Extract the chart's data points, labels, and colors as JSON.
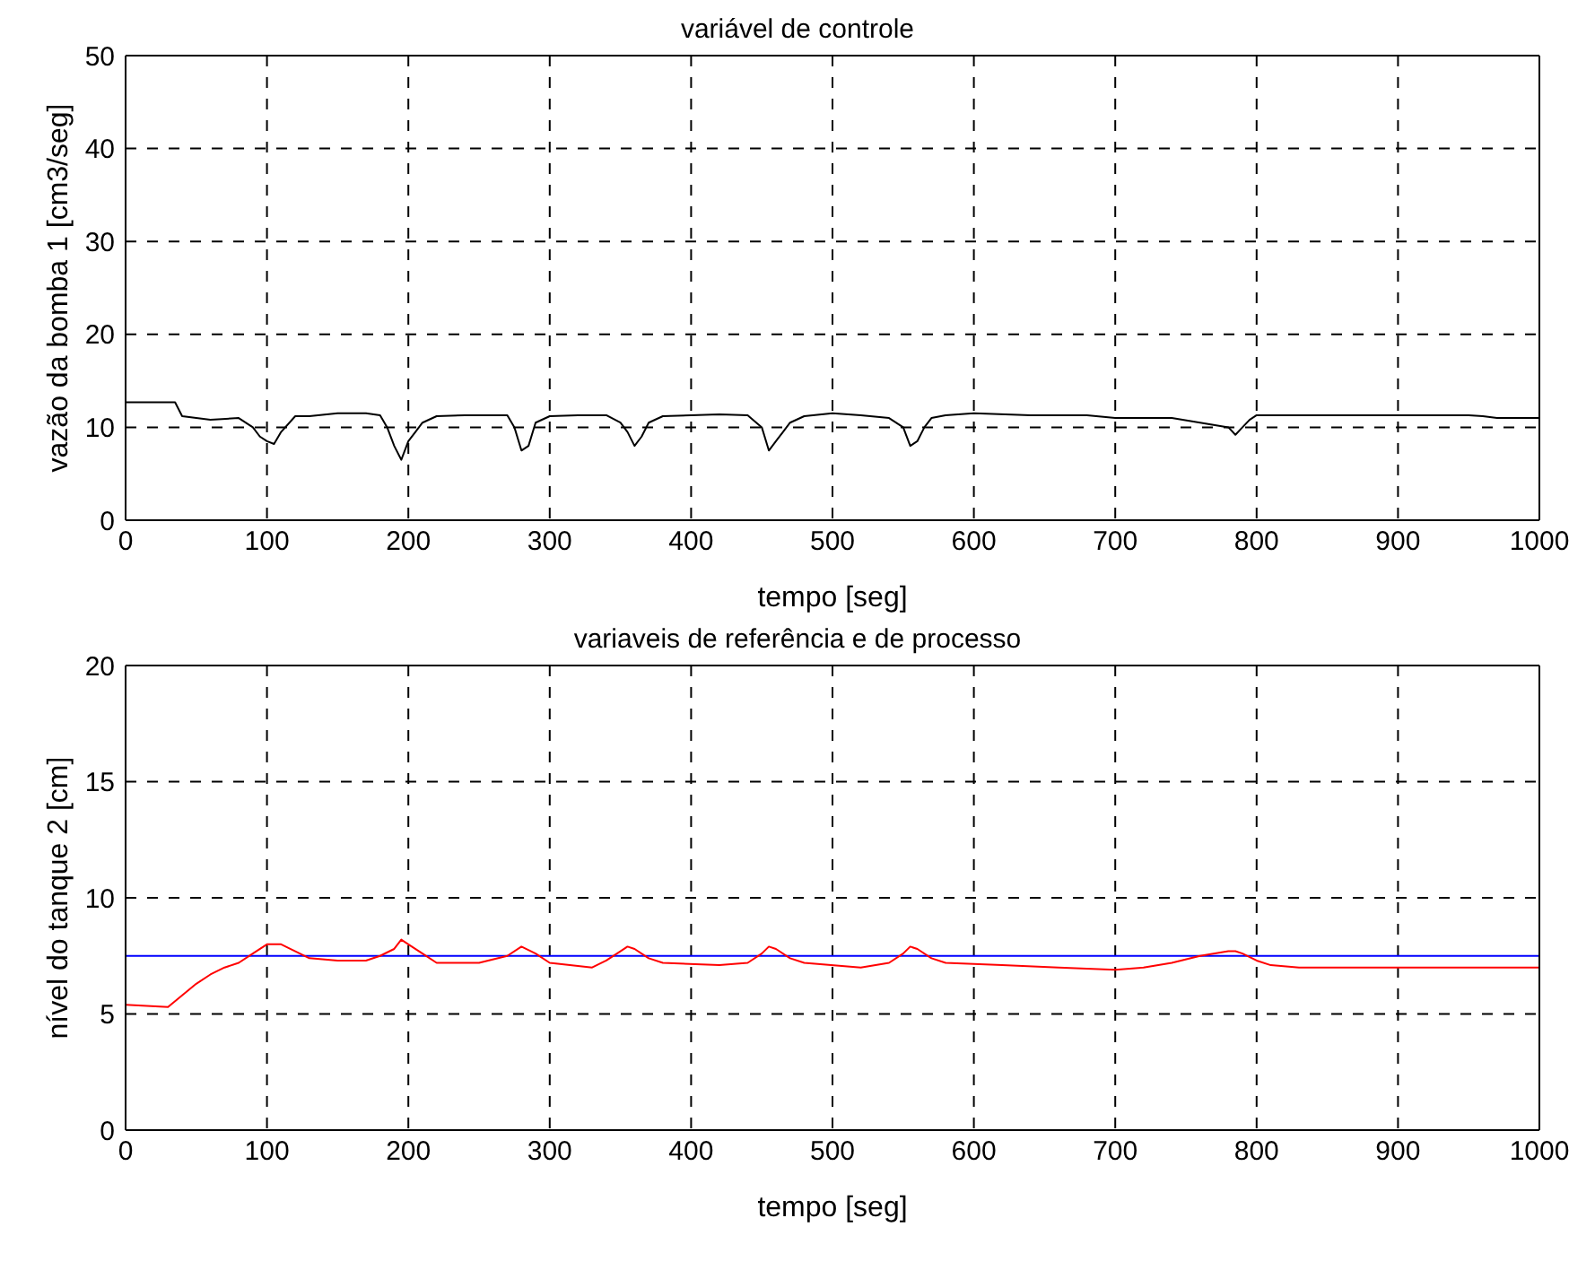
{
  "chart_data": [
    {
      "type": "line",
      "title": "variável de controle",
      "xlabel": "tempo [seg]",
      "ylabel": "vazão da bomba 1 [cm3/seg]",
      "xlim": [
        0,
        1000
      ],
      "ylim": [
        0,
        50
      ],
      "xticks": [
        0,
        100,
        200,
        300,
        400,
        500,
        600,
        700,
        800,
        900,
        1000
      ],
      "yticks": [
        0,
        10,
        20,
        30,
        40,
        50
      ],
      "grid": true,
      "line_style": "solid",
      "marker": "none",
      "x": [
        0,
        35,
        40,
        50,
        60,
        80,
        90,
        95,
        100,
        105,
        110,
        120,
        130,
        150,
        170,
        180,
        185,
        190,
        195,
        200,
        205,
        210,
        220,
        240,
        260,
        270,
        275,
        280,
        285,
        290,
        300,
        320,
        340,
        350,
        355,
        360,
        365,
        370,
        380,
        400,
        420,
        440,
        450,
        455,
        460,
        465,
        470,
        480,
        500,
        520,
        540,
        550,
        555,
        560,
        565,
        570,
        580,
        600,
        640,
        680,
        700,
        740,
        760,
        780,
        785,
        790,
        795,
        800,
        810,
        850,
        900,
        950,
        960,
        970,
        980,
        1000
      ],
      "series": [
        {
          "color": "#000000",
          "values": [
            12.7,
            12.7,
            11.2,
            11.0,
            10.8,
            11.0,
            10.0,
            9.0,
            8.5,
            8.2,
            9.5,
            11.2,
            11.2,
            11.5,
            11.5,
            11.3,
            10.0,
            8.0,
            6.5,
            8.5,
            9.5,
            10.5,
            11.2,
            11.3,
            11.3,
            11.3,
            10.0,
            7.5,
            8.0,
            10.5,
            11.2,
            11.3,
            11.3,
            10.5,
            9.5,
            8.0,
            9.0,
            10.5,
            11.2,
            11.3,
            11.4,
            11.3,
            10.0,
            7.5,
            8.5,
            9.5,
            10.5,
            11.2,
            11.5,
            11.3,
            11.0,
            10.0,
            8.0,
            8.5,
            10.0,
            11.0,
            11.3,
            11.5,
            11.3,
            11.3,
            11.0,
            11.0,
            10.5,
            10.0,
            9.2,
            10.0,
            10.8,
            11.3,
            11.3,
            11.3,
            11.3,
            11.3,
            11.2,
            11.0,
            11.0,
            11.0
          ]
        }
      ]
    },
    {
      "type": "line",
      "title": "variaveis de referência e de processo",
      "xlabel": "tempo [seg]",
      "ylabel": "nível do tanque 2 [cm]",
      "xlim": [
        0,
        1000
      ],
      "ylim": [
        0,
        20
      ],
      "xticks": [
        0,
        100,
        200,
        300,
        400,
        500,
        600,
        700,
        800,
        900,
        1000
      ],
      "yticks": [
        0,
        5,
        10,
        15,
        20
      ],
      "grid": true,
      "line_style": "solid",
      "marker": "none",
      "x": [
        0,
        30,
        40,
        50,
        60,
        70,
        80,
        90,
        100,
        110,
        120,
        130,
        150,
        170,
        180,
        190,
        195,
        200,
        210,
        220,
        250,
        270,
        280,
        290,
        300,
        330,
        340,
        350,
        355,
        360,
        370,
        380,
        420,
        440,
        450,
        455,
        460,
        470,
        480,
        520,
        540,
        550,
        555,
        560,
        570,
        580,
        620,
        660,
        700,
        720,
        740,
        760,
        780,
        785,
        790,
        800,
        810,
        830,
        850,
        900,
        1000
      ],
      "series": [
        {
          "color": "#0000ff",
          "values": [
            7.5,
            7.5,
            7.5,
            7.5,
            7.5,
            7.5,
            7.5,
            7.5,
            7.5,
            7.5,
            7.5,
            7.5,
            7.5,
            7.5,
            7.5,
            7.5,
            7.5,
            7.5,
            7.5,
            7.5,
            7.5,
            7.5,
            7.5,
            7.5,
            7.5,
            7.5,
            7.5,
            7.5,
            7.5,
            7.5,
            7.5,
            7.5,
            7.5,
            7.5,
            7.5,
            7.5,
            7.5,
            7.5,
            7.5,
            7.5,
            7.5,
            7.5,
            7.5,
            7.5,
            7.5,
            7.5,
            7.5,
            7.5,
            7.5,
            7.5,
            7.5,
            7.5,
            7.5,
            7.5,
            7.5,
            7.5,
            7.5,
            7.5,
            7.5,
            7.5,
            7.5
          ]
        },
        {
          "color": "#ff0000",
          "values": [
            5.4,
            5.3,
            5.8,
            6.3,
            6.7,
            7.0,
            7.2,
            7.6,
            8.0,
            8.0,
            7.7,
            7.4,
            7.3,
            7.3,
            7.5,
            7.8,
            8.2,
            8.0,
            7.6,
            7.2,
            7.2,
            7.5,
            7.9,
            7.6,
            7.2,
            7.0,
            7.3,
            7.7,
            7.9,
            7.8,
            7.4,
            7.2,
            7.1,
            7.2,
            7.6,
            7.9,
            7.8,
            7.4,
            7.2,
            7.0,
            7.2,
            7.6,
            7.9,
            7.8,
            7.4,
            7.2,
            7.1,
            7.0,
            6.9,
            7.0,
            7.2,
            7.5,
            7.7,
            7.7,
            7.6,
            7.3,
            7.1,
            7.0,
            7.0,
            7.0,
            7.0
          ]
        }
      ]
    }
  ]
}
